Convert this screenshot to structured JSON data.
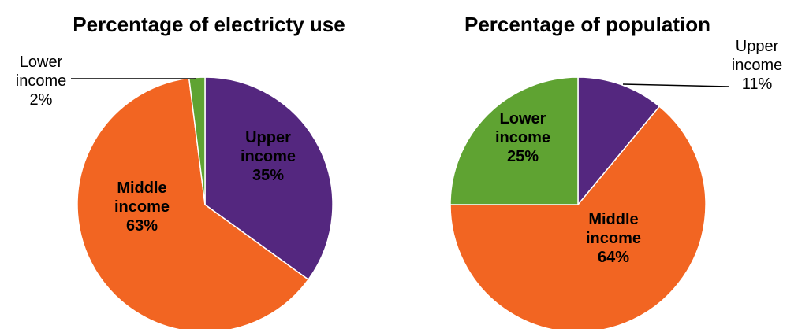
{
  "chart_data": [
    {
      "type": "pie",
      "title": "Percentage of electricty use",
      "series": [
        {
          "label_lines": [
            "Upper",
            "income",
            "35%"
          ],
          "category": "Upper income",
          "value": 35,
          "color": "#54277F"
        },
        {
          "label_lines": [
            "Middle",
            "income",
            "63%"
          ],
          "category": "Middle income",
          "value": 63,
          "color": "#F26522"
        },
        {
          "label_lines": [
            "Lower",
            "income",
            "2%"
          ],
          "category": "Lower income",
          "value": 2,
          "color": "#5FA332"
        }
      ]
    },
    {
      "type": "pie",
      "title": "Percentage of population",
      "series": [
        {
          "label_lines": [
            "Upper",
            "income",
            "11%"
          ],
          "category": "Upper income",
          "value": 11,
          "color": "#54277F"
        },
        {
          "label_lines": [
            "Middle",
            "income",
            "64%"
          ],
          "category": "Middle income",
          "value": 64,
          "color": "#F26522"
        },
        {
          "label_lines": [
            "Lower",
            "income",
            "25%"
          ],
          "category": "Lower income",
          "value": 25,
          "color": "#5FA332"
        }
      ]
    }
  ]
}
